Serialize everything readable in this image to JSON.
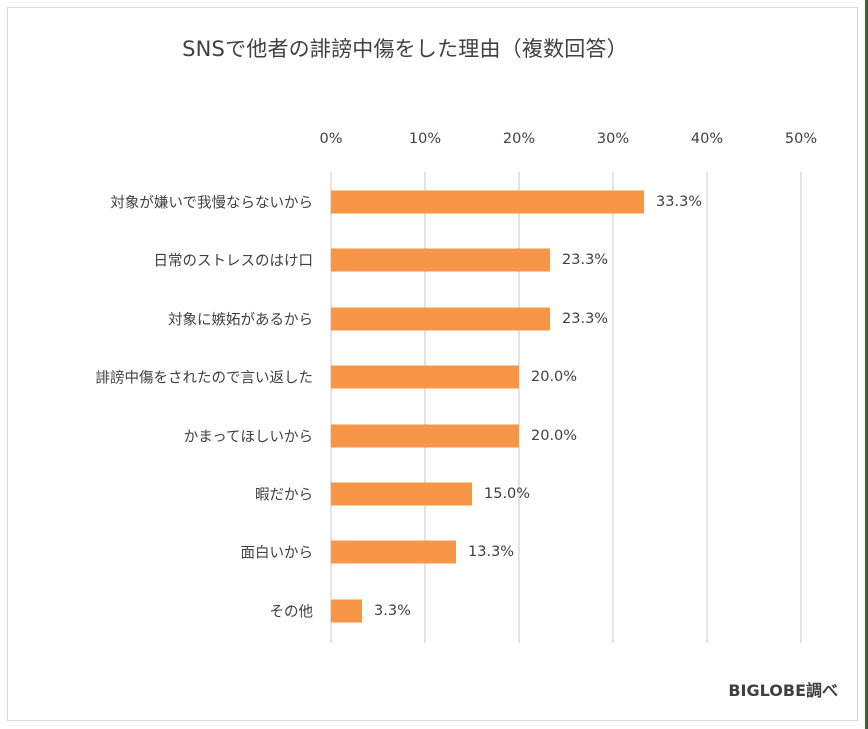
{
  "chart_data": {
    "type": "bar",
    "orientation": "horizontal",
    "title": "SNSで他者の誹謗中傷をした理由（複数回答）",
    "xlabel": "",
    "ylabel": "",
    "xlim": [
      0,
      50
    ],
    "x_ticks": [
      "0%",
      "10%",
      "20%",
      "30%",
      "40%",
      "50%"
    ],
    "x_axis_position": "top",
    "grid": true,
    "legend": null,
    "bar_color": "#f79646",
    "categories": [
      "対象が嫌いで我慢ならないから",
      "日常のストレスのはけ口",
      "対象に嫉妬があるから",
      "誹謗中傷をされたので言い返した",
      "かまってほしいから",
      "暇だから",
      "面白いから",
      "その他"
    ],
    "values": [
      33.3,
      23.3,
      23.3,
      20.0,
      20.0,
      15.0,
      13.3,
      3.3
    ],
    "value_labels": [
      "33.3%",
      "23.3%",
      "23.3%",
      "20.0%",
      "20.0%",
      "15.0%",
      "13.3%",
      "3.3%"
    ],
    "source": "BIGLOBE調べ"
  }
}
